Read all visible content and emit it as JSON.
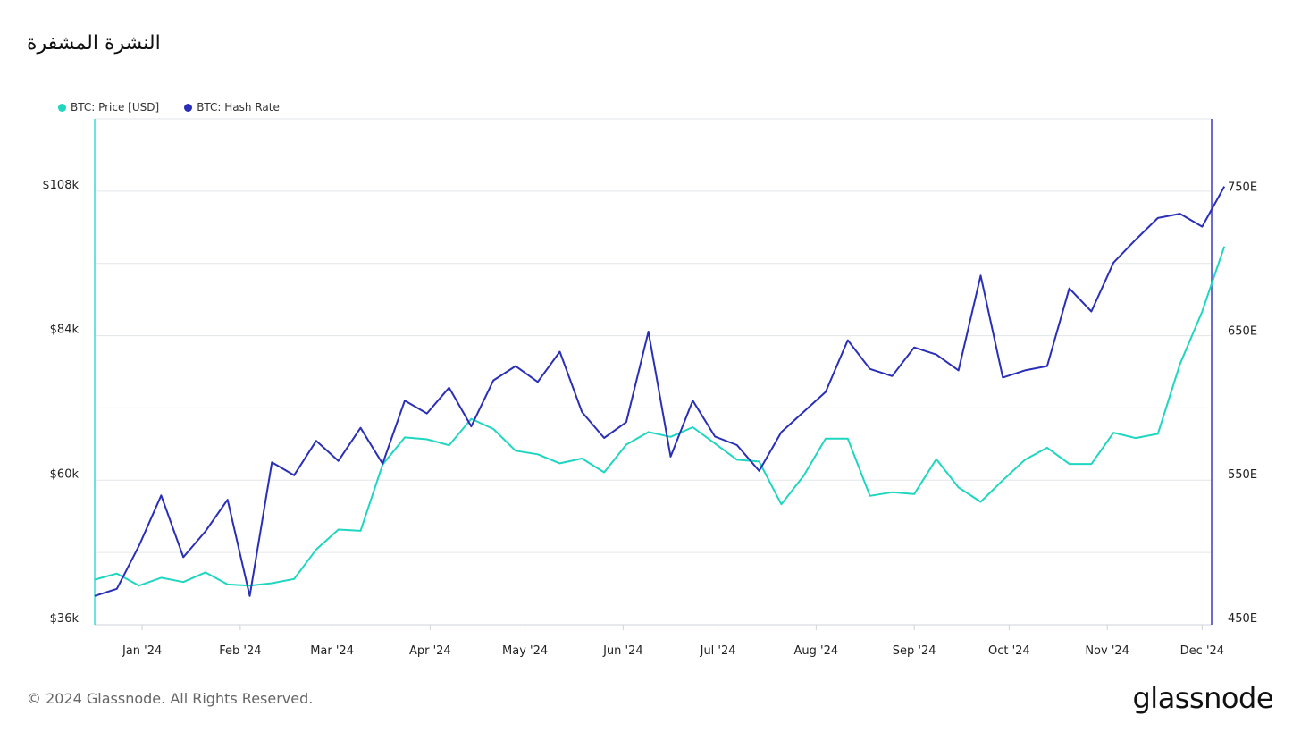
{
  "title": "النشرة المشفرة",
  "footer": "© 2024 Glassnode. All Rights Reserved.",
  "logo_text": "glassnode",
  "colors": {
    "price": "#1fd6c0",
    "hash_rate": "#2a2fb8",
    "grid": "#e3e6ea",
    "left_axis": "#3ed9d0",
    "right_axis": "#3a3fc0"
  },
  "legend": [
    {
      "label": "BTC: Price [USD]",
      "color": "#1fd6c0"
    },
    {
      "label": "BTC: Hash Rate",
      "color": "#2a2fb8"
    }
  ],
  "chart_data": {
    "type": "line",
    "x_start": "2023-12-17",
    "x_end": "2024-12-04",
    "x_step_days": 7,
    "x_ticks": [
      "Jan '24",
      "Feb '24",
      "Mar '24",
      "Apr '24",
      "May '24",
      "Jun '24",
      "Jul '24",
      "Aug '24",
      "Sep '24",
      "Oct '24",
      "Nov '24",
      "Dec '24"
    ],
    "y_left": {
      "ticks": [
        "$36k",
        "$60k",
        "$84k",
        "$108k"
      ],
      "tick_values": [
        36000,
        60000,
        84000,
        108000
      ],
      "range": [
        36000,
        120000
      ]
    },
    "y_right": {
      "ticks": [
        "450E",
        "550E",
        "650E",
        "750E"
      ],
      "tick_values": [
        450,
        550,
        650,
        750
      ],
      "range": [
        450,
        802
      ]
    },
    "grid": true,
    "legend_position": "top-left",
    "series": [
      {
        "name": "BTC: Price [USD]",
        "axis": "left",
        "values": [
          43500,
          44500,
          42500,
          43800,
          43100,
          44700,
          42700,
          42500,
          42900,
          43600,
          48500,
          51800,
          51600,
          62600,
          67100,
          66800,
          65800,
          70200,
          68500,
          64900,
          64300,
          62800,
          63600,
          61300,
          65900,
          68000,
          67200,
          68800,
          66100,
          63400,
          63100,
          56000,
          60700,
          66900,
          66900,
          57400,
          58000,
          57700,
          63500,
          58800,
          56400,
          60000,
          63400,
          65400,
          62700,
          62700,
          67900,
          67000,
          67700,
          79300,
          88000,
          98800
        ]
      },
      {
        "name": "BTC: Hash Rate",
        "axis": "right",
        "values": [
          470,
          475,
          505,
          540,
          497,
          515,
          537,
          470,
          563,
          554,
          578,
          564,
          587,
          562,
          606,
          597,
          615,
          588,
          620,
          630,
          619,
          640,
          598,
          580,
          591,
          654,
          567,
          606,
          581,
          575,
          557,
          584,
          598,
          612,
          648,
          628,
          623,
          643,
          638,
          627,
          693,
          622,
          627,
          630,
          684,
          668,
          702,
          718,
          733,
          736,
          727,
          755
        ]
      }
    ]
  }
}
